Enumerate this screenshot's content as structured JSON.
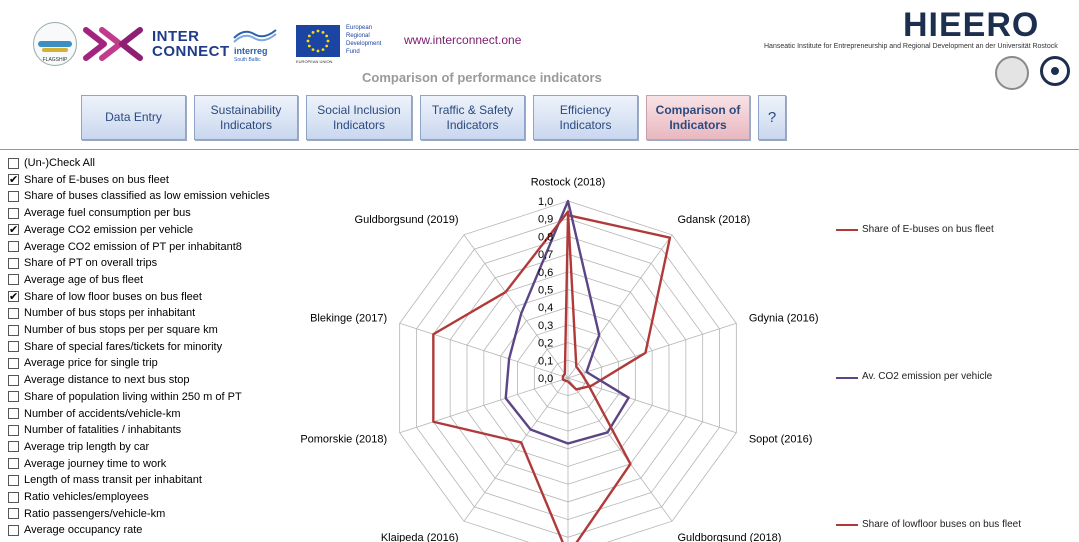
{
  "header": {
    "flagship_logo_label": "FLAGSHIP",
    "interconnect_line1": "INTER",
    "interconnect_line2": "CONNECT",
    "interreg_name": "interreg",
    "interreg_region": "South Baltic",
    "eu_caption": "EUROPEAN UNION",
    "eu_fund_lines": [
      "European",
      "Regional",
      "Development",
      "Fund"
    ],
    "website": "www.interconnect.one",
    "hieero_logo": "HIEERO",
    "hieero_subtitle": "Hanseatic Institute for Entrepreneurship and Regional Development an der Universität Rostock",
    "page_subtitle": "Comparison of performance indicators",
    "colors": {
      "brand_purple": "#7b1b6e",
      "brand_navy": "#1d2f4f"
    }
  },
  "nav": [
    {
      "label_lines": [
        "Data Entry"
      ],
      "active": false
    },
    {
      "label_lines": [
        "Sustainability",
        "Indicators"
      ],
      "active": false
    },
    {
      "label_lines": [
        "Social Inclusion",
        "Indicators"
      ],
      "active": false
    },
    {
      "label_lines": [
        "Traffic & Safety",
        "Indicators"
      ],
      "active": false
    },
    {
      "label_lines": [
        "Efficiency",
        "Indicators"
      ],
      "active": false
    },
    {
      "label_lines": [
        "Comparison of",
        "Indicators"
      ],
      "active": true
    },
    {
      "label_lines": [
        "?"
      ],
      "active": false
    }
  ],
  "checklist": [
    {
      "label": "(Un-)Check All",
      "checked": false
    },
    {
      "label": "Share of E-buses on bus fleet",
      "checked": true
    },
    {
      "label": "Share of buses classified as low emission vehicles",
      "checked": false
    },
    {
      "label": "Average fuel consumption per bus",
      "checked": false
    },
    {
      "label": "Average CO2 emission per vehicle",
      "checked": true
    },
    {
      "label": "Average CO2 emission of PT per inhabitant8",
      "checked": false
    },
    {
      "label": "Share of PT on overall trips",
      "checked": false
    },
    {
      "label": "Average age of bus fleet",
      "checked": false
    },
    {
      "label": "Share of low floor buses on bus fleet",
      "checked": true
    },
    {
      "label": "Number of bus stops per inhabitant",
      "checked": false
    },
    {
      "label": "Number of bus stops per per square km",
      "checked": false
    },
    {
      "label": "Share of special fares/tickets for minority",
      "checked": false
    },
    {
      "label": "Average price for single trip",
      "checked": false
    },
    {
      "label": "Average distance to next bus stop",
      "checked": false
    },
    {
      "label": "Share of population living within 250 m of PT",
      "checked": false
    },
    {
      "label": "Number of accidents/vehicle-km",
      "checked": false
    },
    {
      "label": "Number of fatalities / inhabitants",
      "checked": false
    },
    {
      "label": "Average trip length by car",
      "checked": false
    },
    {
      "label": "Average journey time to work",
      "checked": false
    },
    {
      "label": "Length of mass transit per inhabitant",
      "checked": false
    },
    {
      "label": "Ratio vehicles/employees",
      "checked": false
    },
    {
      "label": "Ratio passengers/vehicle-km",
      "checked": false
    },
    {
      "label": "Average occupancy rate",
      "checked": false
    }
  ],
  "chart_data": {
    "type": "radar",
    "categories": [
      "Rostock (2018)",
      "Gdansk (2018)",
      "Gdynia (2016)",
      "Sopot (2016)",
      "Guldborgsund (2018)",
      "",
      "Klaipeda (2016)",
      "Pomorskie (2018)",
      "Blekinge (2017)",
      "Guldborgsund (2019)"
    ],
    "tick_labels": [
      "0,0",
      "0,1",
      "0,2",
      "0,3",
      "0,4",
      "0,5",
      "0,6",
      "0,7",
      "0,8",
      "0,9",
      "1,0"
    ],
    "rlim": [
      0,
      1
    ],
    "grid": true,
    "legend_position": "right",
    "series": [
      {
        "name": "Share of E-buses on bus fleet",
        "color": "#b03a3a",
        "values": [
          0.92,
          0.98,
          0.46,
          0.14,
          0.08,
          0.02,
          0.02,
          0.03,
          0.03,
          0.03
        ]
      },
      {
        "name": "Av. CO2 emission per vehicle",
        "color": "#5c4585",
        "values": [
          1.0,
          0.3,
          0.11,
          0.36,
          0.38,
          0.37,
          0.36,
          0.37,
          0.35,
          0.45
        ]
      },
      {
        "name": "Share of lowfloor buses on bus fleet",
        "color": "#b03a3a",
        "values": [
          0.94,
          0.08,
          0.08,
          0.12,
          0.6,
          1.0,
          0.45,
          0.8,
          0.8,
          0.6
        ]
      }
    ]
  }
}
